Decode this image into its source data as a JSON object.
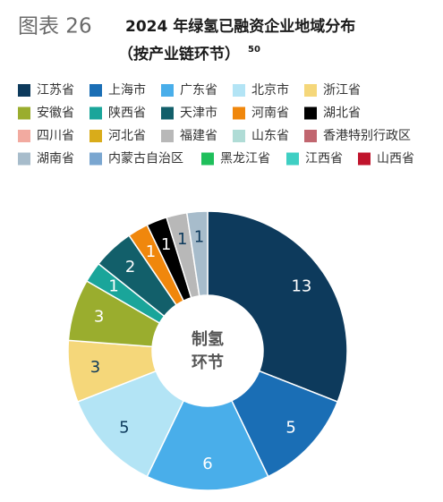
{
  "chart_data": {
    "type": "donut",
    "figure_label": "图表 26",
    "title": "2024 年绿氢已融资企业地域分布",
    "subtitle": "（按产业链环节）",
    "subtitle_note": "50",
    "center_label": [
      "制氢",
      "环节"
    ],
    "categories": [
      "江苏省",
      "上海市",
      "广东省",
      "北京市",
      "浙江省",
      "安徽省",
      "陕西省",
      "天津市",
      "河南省",
      "湖北省",
      "四川省",
      "河北省",
      "福建省",
      "山东省",
      "香港特别行政区",
      "湖南省",
      "内蒙古自治区",
      "黑龙江省",
      "江西省",
      "山西省"
    ],
    "values": [
      13,
      5,
      6,
      5,
      3,
      3,
      1,
      2,
      1,
      1,
      0,
      0,
      1,
      0,
      0,
      1,
      0,
      0,
      0,
      0
    ],
    "colors": [
      "#0d3a5c",
      "#1a6eb5",
      "#49aeea",
      "#b3e4f5",
      "#f5d77a",
      "#9aad2e",
      "#1aa59a",
      "#125f6a",
      "#f0870c",
      "#000000",
      "#f2aaa0",
      "#d9ac1a",
      "#b8b8b8",
      "#b0dcd6",
      "#c1666f",
      "#a7bccb",
      "#7aa6d0",
      "#1fbf5b",
      "#3fcfc3",
      "#c0142c"
    ]
  }
}
